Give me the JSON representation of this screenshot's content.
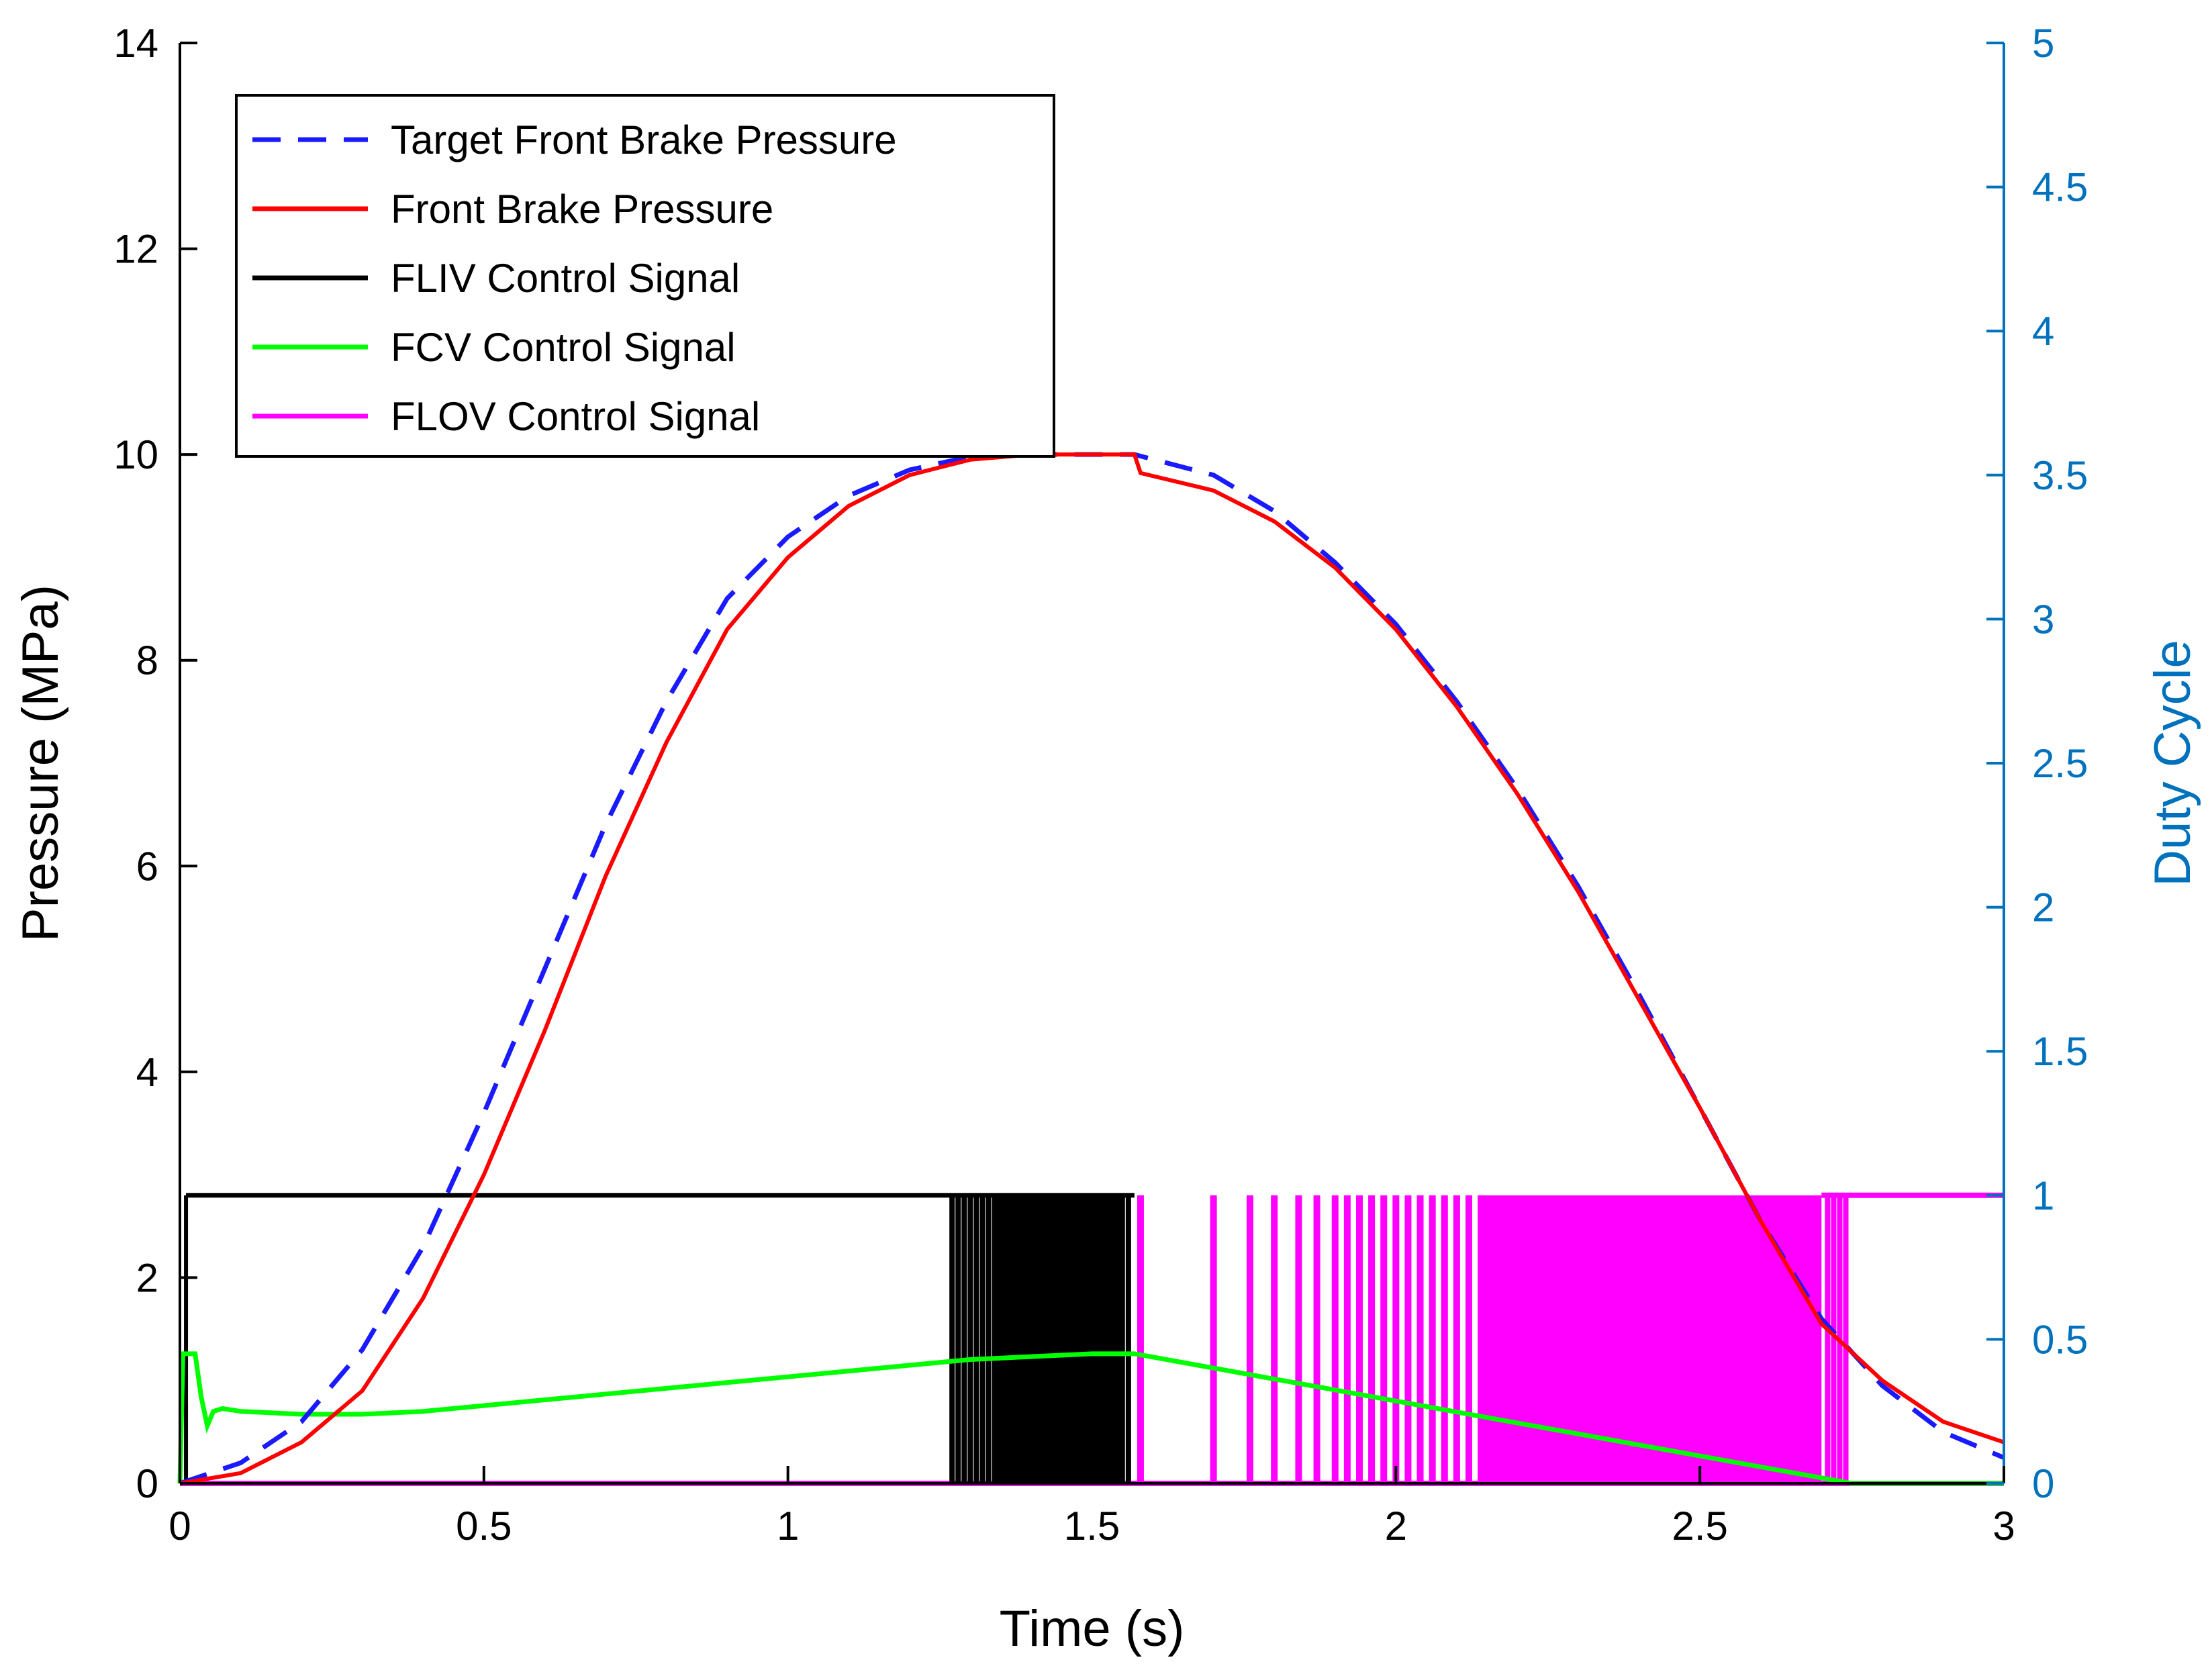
{
  "chart_data": {
    "type": "line",
    "xlabel": "Time (s)",
    "ylabel": "Pressure (MPa)",
    "y2label": "Duty Cycle",
    "xlim": [
      0,
      3
    ],
    "ylim": [
      0,
      14
    ],
    "y2lim": [
      0,
      5
    ],
    "xticks": [
      "0",
      "0.5",
      "1",
      "1.5",
      "2",
      "2.5",
      "3"
    ],
    "yticks": [
      "0",
      "2",
      "4",
      "6",
      "8",
      "10",
      "12",
      "14"
    ],
    "y2ticks": [
      "0",
      "0.5",
      "1",
      "1.5",
      "2",
      "2.5",
      "3",
      "3.5",
      "4",
      "4.5",
      "5"
    ],
    "grid": false,
    "legend_position": "top-left",
    "colors": {
      "target": "#1a1aff",
      "front": "#ff0000",
      "fliv": "#000000",
      "fcv": "#00ff00",
      "flov": "#ff00ff",
      "right_axis": "#0072bd"
    },
    "series": [
      {
        "name": "Target Front Brake Pressure",
        "axis": "left",
        "style": "dashed",
        "x": [
          0,
          0.1,
          0.2,
          0.3,
          0.4,
          0.5,
          0.6,
          0.7,
          0.8,
          0.9,
          1.0,
          1.1,
          1.2,
          1.3,
          1.4,
          1.5,
          1.57,
          1.7,
          1.8,
          1.9,
          2.0,
          2.1,
          2.2,
          2.3,
          2.4,
          2.5,
          2.6,
          2.7,
          2.8,
          2.9,
          3.0
        ],
        "y": [
          0,
          0.2,
          0.6,
          1.3,
          2.3,
          3.6,
          5.0,
          6.4,
          7.6,
          8.6,
          9.2,
          9.6,
          9.85,
          9.98,
          10.0,
          10.0,
          10.0,
          9.8,
          9.45,
          8.95,
          8.35,
          7.6,
          6.75,
          5.8,
          4.75,
          3.65,
          2.55,
          1.6,
          0.95,
          0.5,
          0.25
        ]
      },
      {
        "name": "Front Brake Pressure",
        "axis": "left",
        "style": "solid",
        "x": [
          0,
          0.1,
          0.2,
          0.3,
          0.4,
          0.5,
          0.6,
          0.7,
          0.8,
          0.9,
          1.0,
          1.1,
          1.2,
          1.3,
          1.4,
          1.5,
          1.57,
          1.58,
          1.7,
          1.8,
          1.9,
          2.0,
          2.1,
          2.2,
          2.3,
          2.4,
          2.5,
          2.6,
          2.7,
          2.8,
          2.9,
          3.0
        ],
        "y": [
          0,
          0.1,
          0.4,
          0.9,
          1.8,
          3.0,
          4.4,
          5.9,
          7.2,
          8.3,
          9.0,
          9.5,
          9.8,
          9.95,
          10.0,
          10.0,
          10.0,
          9.82,
          9.65,
          9.35,
          8.9,
          8.3,
          7.55,
          6.7,
          5.75,
          4.7,
          3.65,
          2.55,
          1.55,
          1.0,
          0.6,
          0.4
        ]
      },
      {
        "name": "FLIV Control Signal",
        "axis": "right",
        "style": "pulses",
        "level": 1,
        "start": 0.01,
        "solid_until": 1.27,
        "pulse_edges": [
          1.27,
          1.28,
          1.29,
          1.3,
          1.31,
          1.32,
          1.33,
          1.34,
          1.55,
          1.56
        ],
        "off_from": 1.57
      },
      {
        "name": "FCV Control Signal",
        "axis": "right",
        "style": "solid",
        "x": [
          0,
          0.005,
          0.02,
          0.025,
          0.035,
          0.045,
          0.055,
          0.07,
          0.1,
          0.2,
          0.3,
          0.4,
          0.5,
          0.6,
          0.7,
          0.8,
          0.9,
          1.0,
          1.1,
          1.2,
          1.3,
          1.4,
          1.5,
          1.57,
          2.75,
          3.0
        ],
        "y": [
          0,
          0.45,
          0.45,
          0.45,
          0.3,
          0.2,
          0.25,
          0.26,
          0.25,
          0.24,
          0.24,
          0.25,
          0.27,
          0.29,
          0.31,
          0.33,
          0.35,
          0.37,
          0.39,
          0.41,
          0.43,
          0.44,
          0.45,
          0.45,
          0,
          0
        ]
      },
      {
        "name": "FLOV Control Signal",
        "axis": "right",
        "style": "pulses",
        "level": 1,
        "pulse_times": [
          1.58,
          1.7,
          1.76,
          1.8,
          1.84,
          1.87,
          1.9,
          1.92,
          1.94,
          1.96,
          1.98,
          2.0,
          2.02,
          2.04,
          2.06,
          2.08,
          2.1,
          2.12,
          2.14
        ],
        "dense_range": [
          2.14,
          2.7
        ],
        "tail_pulses": [
          2.71,
          2.72,
          2.73,
          2.74
        ],
        "solid_from": 2.75,
        "solid_to": 3.0
      }
    ]
  }
}
